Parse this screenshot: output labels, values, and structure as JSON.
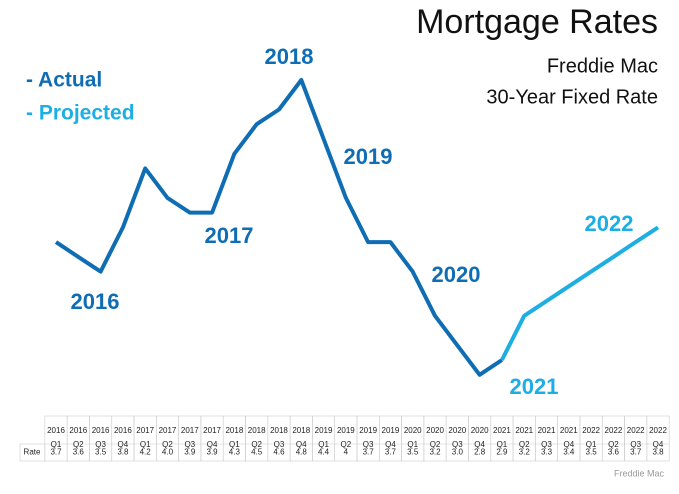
{
  "chart_data": {
    "type": "line",
    "title": "Mortgage Rates",
    "subtitle": [
      "Freddie Mac",
      "30-Year Fixed Rate"
    ],
    "years": [
      "2016",
      "2016",
      "2016",
      "2016",
      "2017",
      "2017",
      "2017",
      "2017",
      "2018",
      "2018",
      "2018",
      "2018",
      "2019",
      "2019",
      "2019",
      "2019",
      "2020",
      "2020",
      "2020",
      "2020",
      "2021",
      "2021",
      "2021",
      "2021",
      "2022",
      "2022",
      "2022",
      "2022"
    ],
    "quarters": [
      "Q1",
      "Q2",
      "Q3",
      "Q4",
      "Q1",
      "Q2",
      "Q3",
      "Q4",
      "Q1",
      "Q2",
      "Q3",
      "Q4",
      "Q1",
      "Q2",
      "Q3",
      "Q4",
      "Q1",
      "Q2",
      "Q3",
      "Q4",
      "Q1",
      "Q2",
      "Q3",
      "Q4",
      "Q1",
      "Q2",
      "Q3",
      "Q4"
    ],
    "row_label": "Rate",
    "series": [
      {
        "name": "- Actual",
        "color": "#0f6db3",
        "values": [
          3.7,
          3.6,
          3.5,
          3.8,
          4.2,
          4.0,
          3.9,
          3.9,
          4.3,
          4.5,
          4.6,
          4.8,
          4.4,
          4,
          3.7,
          3.7,
          3.5,
          3.2,
          3.0,
          2.8,
          2.9,
          null,
          null,
          null,
          null,
          null,
          null,
          null
        ],
        "value_labels": [
          "3.7",
          "3.6",
          "3.5",
          "3.8",
          "4.2",
          "4.0",
          "3.9",
          "3.9",
          "4.3",
          "4.5",
          "4.6",
          "4.8",
          "4.4",
          "4",
          "3.7",
          "3.7",
          "3.5",
          "3.2",
          "3.0",
          "2.8",
          "2.9",
          null,
          null,
          null,
          null,
          null,
          null,
          null
        ]
      },
      {
        "name": "- Projected",
        "color": "#1daee3",
        "values": [
          null,
          null,
          null,
          null,
          null,
          null,
          null,
          null,
          null,
          null,
          null,
          null,
          null,
          null,
          null,
          null,
          null,
          null,
          null,
          null,
          2.9,
          3.2,
          3.3,
          3.4,
          3.5,
          3.6,
          3.7,
          3.8
        ]
      }
    ],
    "ylim": [
      2.5,
      5.0
    ],
    "annotations": [
      {
        "text": "2016",
        "color": "#0f6db3"
      },
      {
        "text": "2017",
        "color": "#0f6db3"
      },
      {
        "text": "2018",
        "color": "#0f6db3"
      },
      {
        "text": "2019",
        "color": "#0f6db3"
      },
      {
        "text": "2020",
        "color": "#0f6db3"
      },
      {
        "text": "2021",
        "color": "#1daee3"
      },
      {
        "text": "2022",
        "color": "#1daee3"
      }
    ],
    "source": "Freddie Mac"
  }
}
